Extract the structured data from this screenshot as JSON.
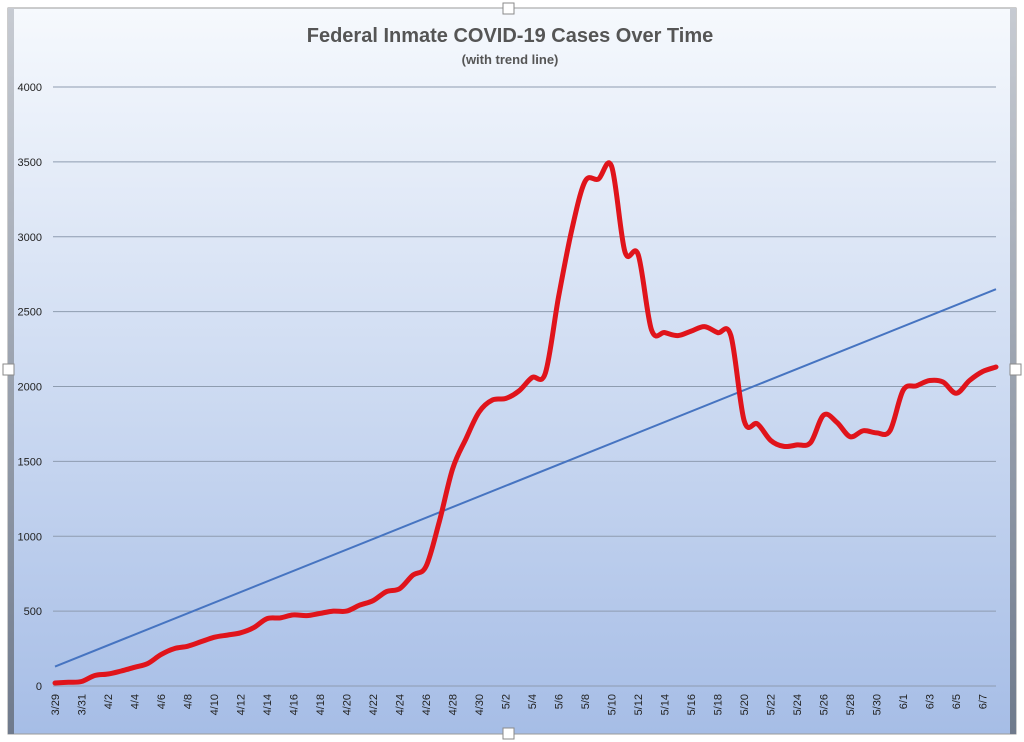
{
  "chart_data": {
    "type": "line",
    "title": "Federal Inmate COVID-19 Cases Over Time",
    "subtitle": "(with trend line)",
    "xlabel": "",
    "ylabel": "",
    "ylim": [
      0,
      4000
    ],
    "yticks": [
      0,
      500,
      1000,
      1500,
      2000,
      2500,
      3000,
      3500,
      4000
    ],
    "x_tick_labels": [
      "3/29",
      "3/31",
      "4/2",
      "4/4",
      "4/6",
      "4/8",
      "4/10",
      "4/12",
      "4/14",
      "4/16",
      "4/18",
      "4/20",
      "4/22",
      "4/24",
      "4/26",
      "4/28",
      "4/30",
      "5/2",
      "5/4",
      "5/6",
      "5/8",
      "5/10",
      "5/12",
      "5/14",
      "5/16",
      "5/18",
      "5/20",
      "5/22",
      "5/24",
      "5/26",
      "5/28",
      "5/30",
      "6/1",
      "6/3",
      "6/5",
      "6/7"
    ],
    "x": [
      "3/29",
      "3/30",
      "3/31",
      "4/1",
      "4/2",
      "4/3",
      "4/4",
      "4/5",
      "4/6",
      "4/7",
      "4/8",
      "4/9",
      "4/10",
      "4/11",
      "4/12",
      "4/13",
      "4/14",
      "4/15",
      "4/16",
      "4/17",
      "4/18",
      "4/19",
      "4/20",
      "4/21",
      "4/22",
      "4/23",
      "4/24",
      "4/25",
      "4/26",
      "4/27",
      "4/28",
      "4/29",
      "4/30",
      "5/1",
      "5/2",
      "5/3",
      "5/4",
      "5/5",
      "5/6",
      "5/7",
      "5/8",
      "5/9",
      "5/10",
      "5/11",
      "5/12",
      "5/13",
      "5/14",
      "5/15",
      "5/16",
      "5/17",
      "5/18",
      "5/19",
      "5/20",
      "5/21",
      "5/22",
      "5/23",
      "5/24",
      "5/25",
      "5/26",
      "5/27",
      "5/28",
      "5/29",
      "5/30",
      "5/31",
      "6/1",
      "6/2",
      "6/3",
      "6/4",
      "6/5",
      "6/6",
      "6/7",
      "6/8"
    ],
    "series": [
      {
        "values": [
          20,
          25,
          30,
          70,
          80,
          100,
          125,
          150,
          210,
          250,
          265,
          295,
          325,
          340,
          355,
          390,
          450,
          455,
          475,
          470,
          485,
          500,
          500,
          540,
          570,
          630,
          650,
          740,
          800,
          1100,
          1450,
          1650,
          1830,
          1910,
          1920,
          1970,
          2060,
          2090,
          2600,
          3050,
          3370,
          3385,
          3470,
          2900,
          2880,
          2380,
          2360,
          2340,
          2370,
          2400,
          2360,
          2340,
          1770,
          1750,
          1640,
          1600,
          1610,
          1625,
          1810,
          1760,
          1665,
          1705,
          1690,
          1705,
          1975,
          2005,
          2040,
          2030,
          1955,
          2040,
          2100,
          2130
        ]
      }
    ],
    "trend_line": {
      "start": 130,
      "end": 2650
    },
    "colors": {
      "series": "#e0141b",
      "trend": "#4674c1",
      "gridline": "#8e9cb0",
      "plot_top": "#f6f9fd",
      "plot_bottom": "#a6bde6",
      "frame": "#7a7a7a"
    }
  }
}
